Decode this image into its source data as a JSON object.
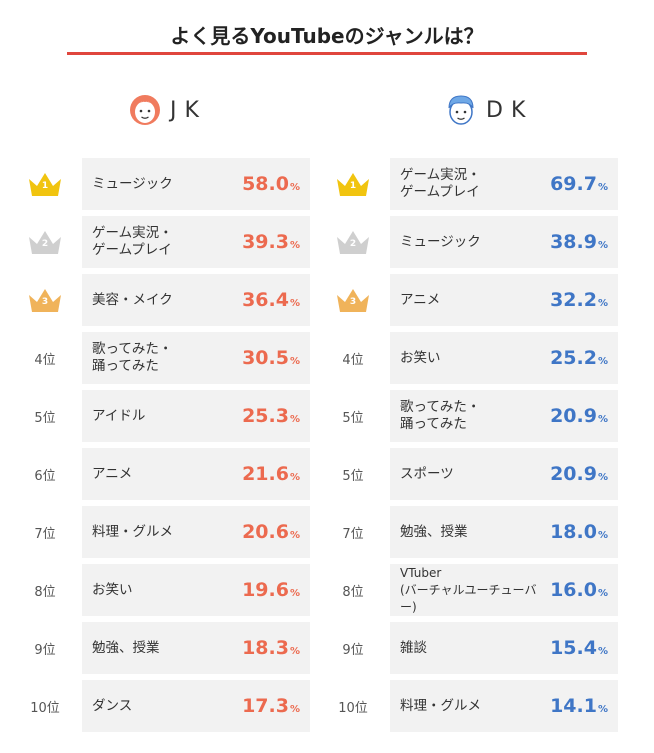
{
  "title": "よく見るYouTubeのジャンルは？",
  "colors": {
    "jk": "#ec6a4f",
    "dk": "#3f76c6",
    "gold": "#f1c40f",
    "silver": "#cfcfcf",
    "bronze": "#f0b35a",
    "rule": "#e0463d"
  },
  "chart_data": [
    {
      "type": "table",
      "title": "JK",
      "unit": "%",
      "rows": [
        {
          "rank": "1",
          "genre": "ミュージック",
          "value": "58.0"
        },
        {
          "rank": "2",
          "genre": "ゲーム実況・\nゲームプレイ",
          "value": "39.3"
        },
        {
          "rank": "3",
          "genre": "美容・メイク",
          "value": "36.4"
        },
        {
          "rank": "4位",
          "genre": "歌ってみた・\n踊ってみた",
          "value": "30.5"
        },
        {
          "rank": "5位",
          "genre": "アイドル",
          "value": "25.3"
        },
        {
          "rank": "6位",
          "genre": "アニメ",
          "value": "21.6"
        },
        {
          "rank": "7位",
          "genre": "料理・グルメ",
          "value": "20.6"
        },
        {
          "rank": "8位",
          "genre": "お笑い",
          "value": "19.6"
        },
        {
          "rank": "9位",
          "genre": "勉強、授業",
          "value": "18.3"
        },
        {
          "rank": "10位",
          "genre": "ダンス",
          "value": "17.3"
        }
      ]
    },
    {
      "type": "table",
      "title": "DK",
      "unit": "%",
      "rows": [
        {
          "rank": "1",
          "genre": "ゲーム実況・\nゲームプレイ",
          "value": "69.7"
        },
        {
          "rank": "2",
          "genre": "ミュージック",
          "value": "38.9"
        },
        {
          "rank": "3",
          "genre": "アニメ",
          "value": "32.2"
        },
        {
          "rank": "4位",
          "genre": "お笑い",
          "value": "25.2"
        },
        {
          "rank": "5位",
          "genre": "歌ってみた・\n踊ってみた",
          "value": "20.9"
        },
        {
          "rank": "5位",
          "genre": "スポーツ",
          "value": "20.9"
        },
        {
          "rank": "7位",
          "genre": "勉強、授業",
          "value": "18.0"
        },
        {
          "rank": "8位",
          "genre": "VTuber\n(バーチャルユーチューバー)",
          "value": "16.0"
        },
        {
          "rank": "9位",
          "genre": "雑談",
          "value": "15.4"
        },
        {
          "rank": "10位",
          "genre": "料理・グルメ",
          "value": "14.1"
        }
      ]
    }
  ]
}
